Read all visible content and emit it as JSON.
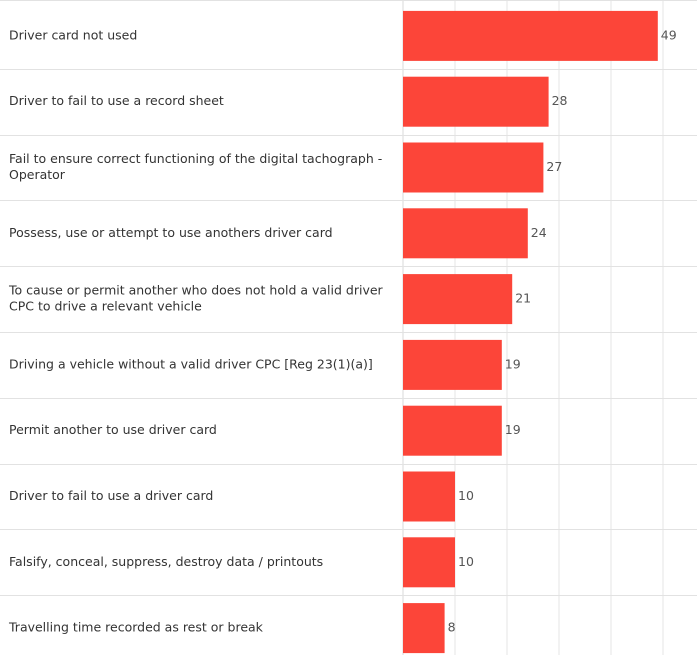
{
  "chart_data": {
    "type": "bar",
    "orientation": "horizontal",
    "categories": [
      [
        "Driver card not used"
      ],
      [
        "Driver to fail to use a record sheet"
      ],
      [
        "Fail to ensure correct functioning of the digital tachograph -",
        "Operator"
      ],
      [
        "Possess, use or attempt to use anothers driver card"
      ],
      [
        "To cause or permit another who does not hold a valid driver",
        "CPC to drive a relevant vehicle"
      ],
      [
        "Driving a vehicle without a valid driver CPC [Reg 23(1)(a)]"
      ],
      [
        "Permit another to use driver card"
      ],
      [
        "Driver to fail to use a driver card"
      ],
      [
        "Falsify, conceal, suppress, destroy data / printouts"
      ],
      [
        "Travelling time recorded as rest or break"
      ]
    ],
    "values": [
      49,
      28,
      27,
      24,
      21,
      19,
      19,
      10,
      10,
      8
    ],
    "xlim": [
      0,
      55
    ],
    "grid": true,
    "data_labels": true,
    "colors": {
      "bar": "#FC4539"
    }
  }
}
